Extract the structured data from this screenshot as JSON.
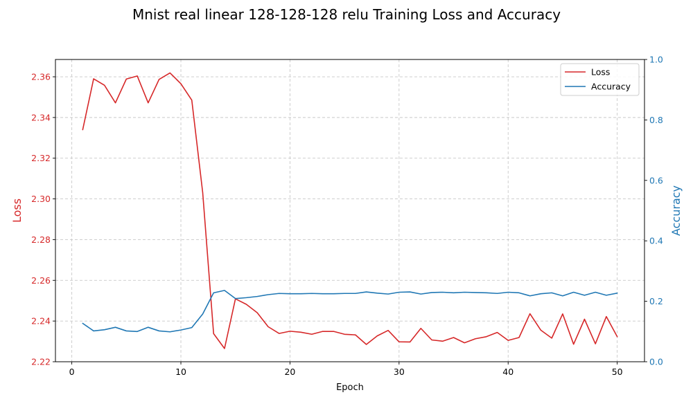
{
  "chart_data": {
    "type": "line",
    "title": "Mnist real linear 128-128-128 relu Training Loss and Accuracy",
    "xlabel": "Epoch",
    "ylabel_left": "Loss",
    "ylabel_right": "Accuracy",
    "x": [
      1,
      2,
      3,
      4,
      5,
      6,
      7,
      8,
      9,
      10,
      11,
      12,
      13,
      14,
      15,
      16,
      17,
      18,
      19,
      20,
      21,
      22,
      23,
      24,
      25,
      26,
      27,
      28,
      29,
      30,
      31,
      32,
      33,
      34,
      35,
      36,
      37,
      38,
      39,
      40,
      41,
      42,
      43,
      44,
      45,
      46,
      47,
      48,
      49,
      50
    ],
    "series": [
      {
        "name": "Loss",
        "axis": "left",
        "color": "#d62728",
        "values": [
          2.334,
          2.359,
          2.3558,
          2.3472,
          2.3589,
          2.3604,
          2.3472,
          2.3587,
          2.3619,
          2.3566,
          2.3485,
          2.3031,
          2.2338,
          2.2265,
          2.2509,
          2.2482,
          2.2441,
          2.2372,
          2.2339,
          2.235,
          2.2345,
          2.2335,
          2.2349,
          2.2349,
          2.2335,
          2.2332,
          2.2285,
          2.2327,
          2.2354,
          2.2298,
          2.2297,
          2.2364,
          2.2307,
          2.2301,
          2.2319,
          2.2293,
          2.2313,
          2.2323,
          2.2344,
          2.2305,
          2.2319,
          2.2436,
          2.2355,
          2.2316,
          2.2435,
          2.2286,
          2.2409,
          2.2288,
          2.2422,
          2.2323
        ]
      },
      {
        "name": "Accuracy",
        "axis": "right",
        "color": "#1f77b4",
        "values": [
          0.127,
          0.102,
          0.106,
          0.114,
          0.102,
          0.1,
          0.114,
          0.102,
          0.099,
          0.105,
          0.113,
          0.158,
          0.228,
          0.236,
          0.209,
          0.212,
          0.216,
          0.222,
          0.226,
          0.225,
          0.225,
          0.226,
          0.225,
          0.225,
          0.226,
          0.226,
          0.231,
          0.227,
          0.224,
          0.23,
          0.231,
          0.224,
          0.229,
          0.23,
          0.228,
          0.23,
          0.229,
          0.228,
          0.226,
          0.23,
          0.228,
          0.218,
          0.225,
          0.228,
          0.218,
          0.23,
          0.22,
          0.23,
          0.22,
          0.227
        ]
      }
    ],
    "xlim": [
      -1.5,
      52.5
    ],
    "ylim_left": [
      2.22,
      2.3685
    ],
    "ylim_right": [
      0,
      1
    ],
    "xticks": [
      0,
      10,
      20,
      30,
      40,
      50
    ],
    "yticks_left": [
      2.22,
      2.24,
      2.26,
      2.28,
      2.3,
      2.32,
      2.34,
      2.36
    ],
    "ytick_labels_left": [
      "2.22",
      "2.24",
      "2.26",
      "2.28",
      "2.30",
      "2.32",
      "2.34",
      "2.36"
    ],
    "yticks_right": [
      0.0,
      0.2,
      0.4,
      0.6,
      0.8,
      1.0
    ],
    "ytick_labels_right": [
      "0.0",
      "0.2",
      "0.4",
      "0.6",
      "0.8",
      "1.0"
    ],
    "grid": true,
    "legend": "top-right",
    "colors": {
      "loss": "#d62728",
      "accuracy": "#1f77b4"
    }
  }
}
